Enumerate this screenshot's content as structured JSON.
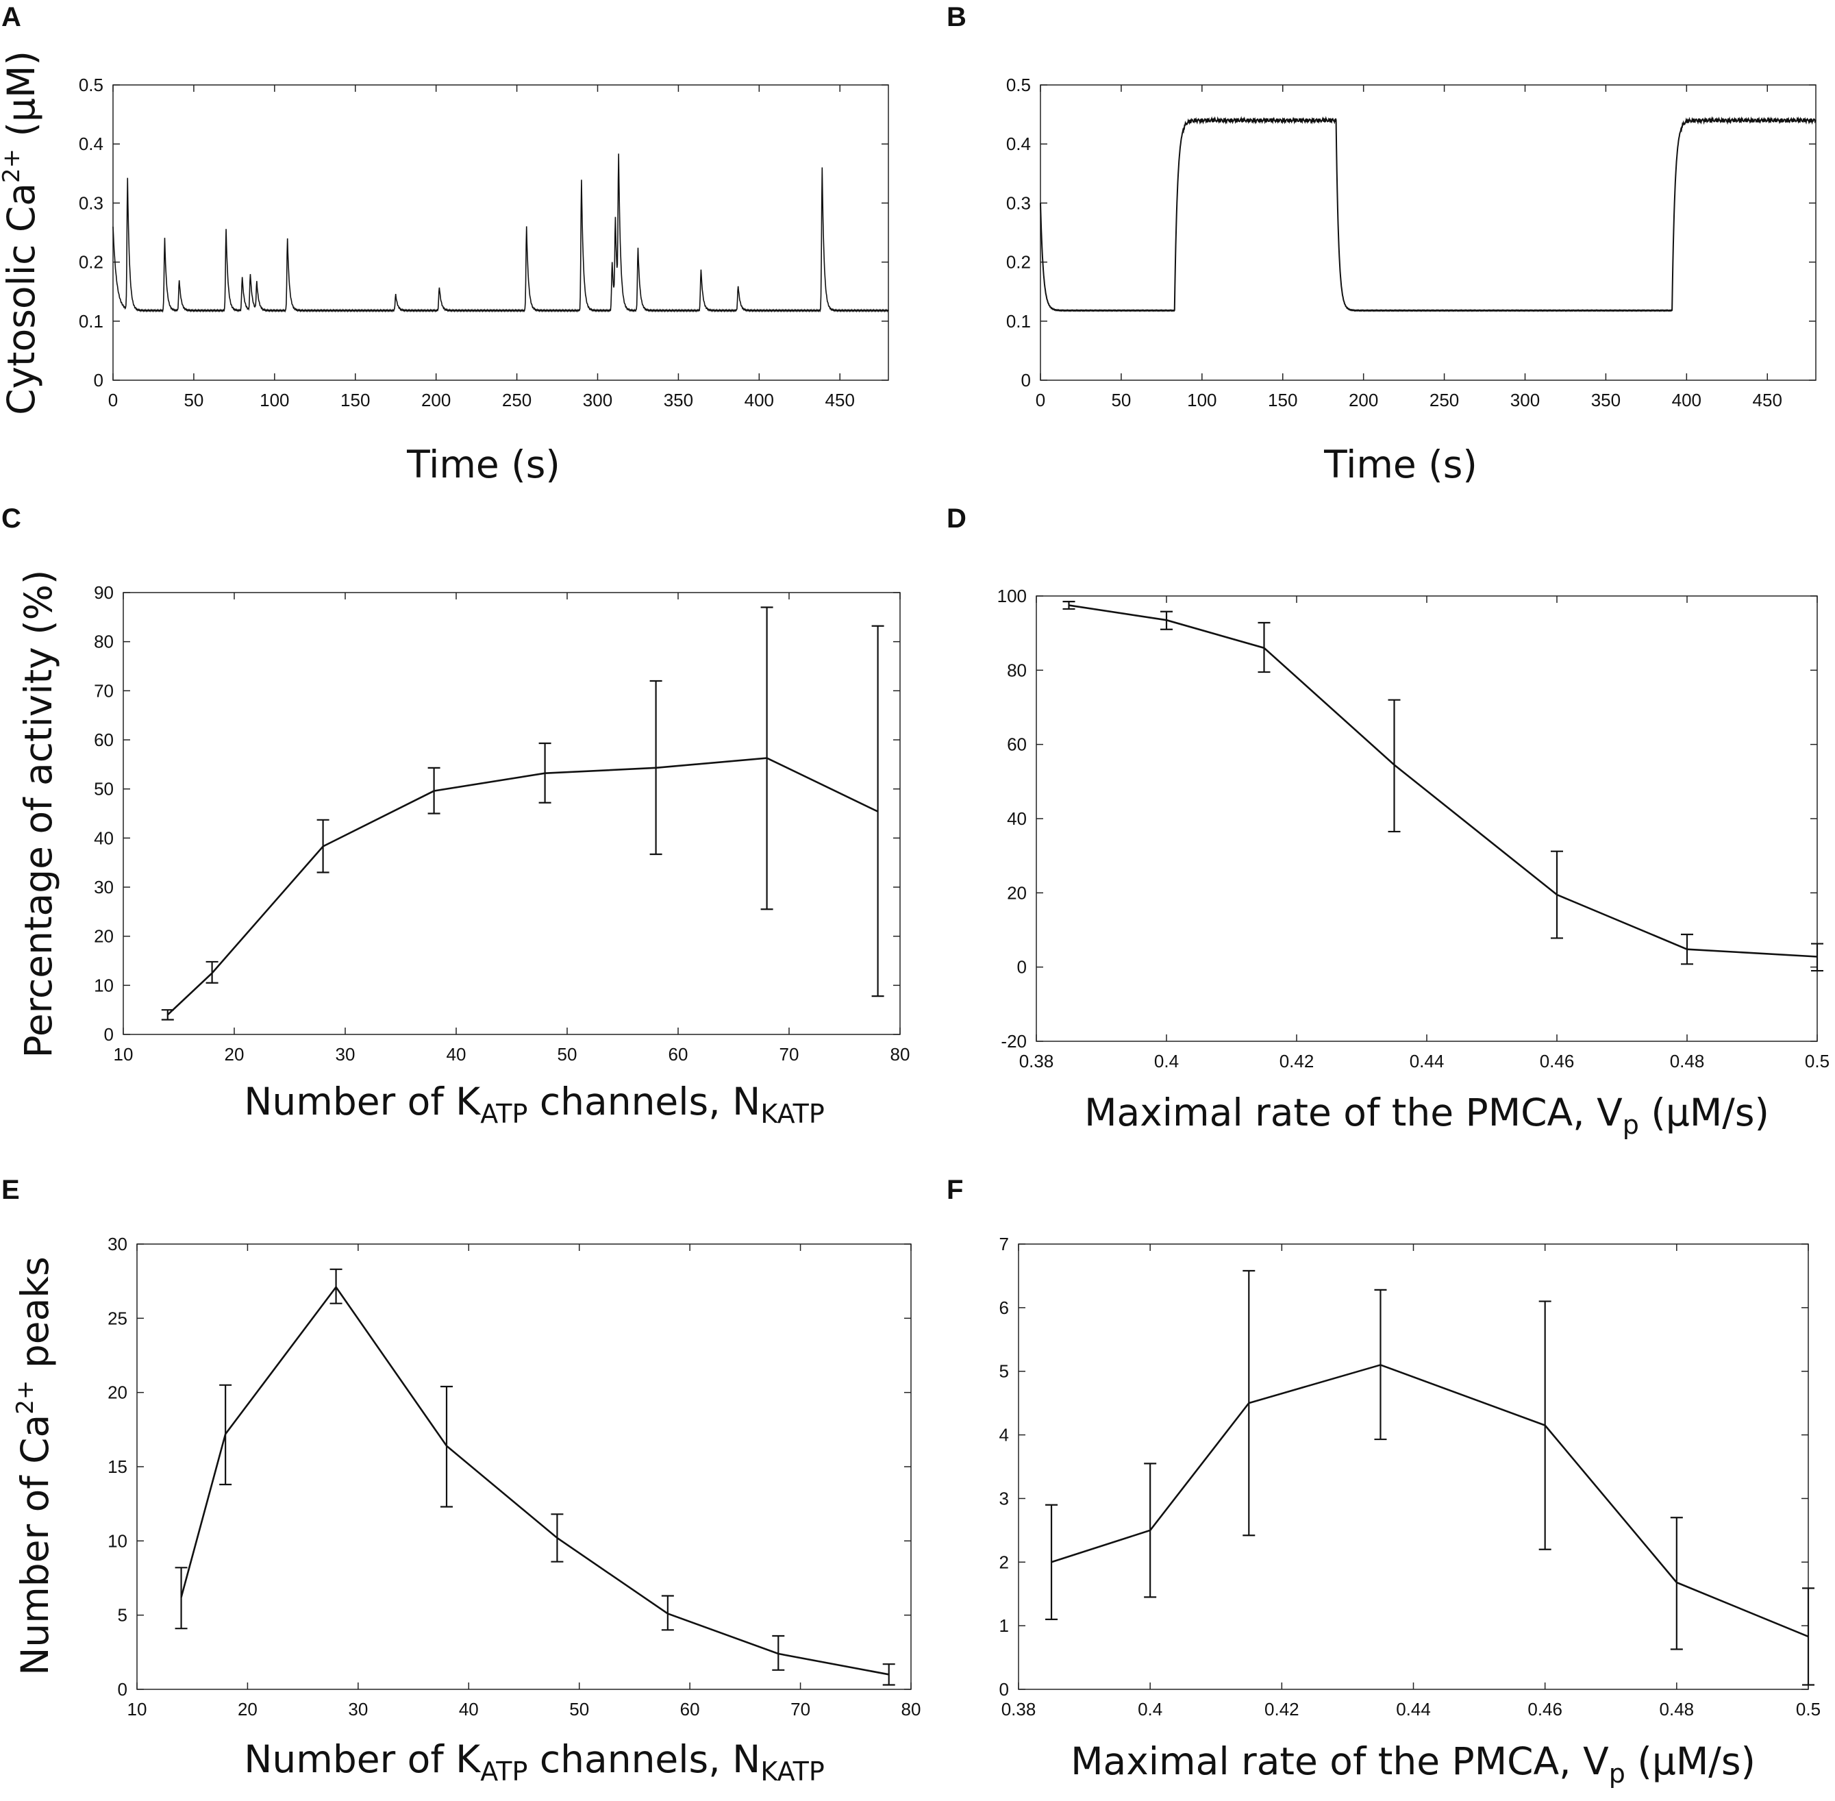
{
  "figure": {
    "panel_letters": [
      "A",
      "B",
      "C",
      "D",
      "E",
      "F"
    ]
  },
  "chart_data": [
    {
      "panel": "A",
      "type": "line",
      "title": "",
      "xlabel": "Time (s)",
      "ylabel": {
        "pre": "Cytosolic Ca",
        "sup": "2+",
        "post": " (μM)"
      },
      "xlim": [
        0,
        480
      ],
      "ylim": [
        0,
        0.5
      ],
      "xticks": [
        0,
        50,
        100,
        150,
        200,
        250,
        300,
        350,
        400,
        450
      ],
      "yticks": [
        0,
        0.1,
        0.2,
        0.3,
        0.4,
        0.5
      ],
      "baseline": 0.118,
      "start_value": 0.26,
      "peaks": [
        {
          "t": 9,
          "v": 0.34
        },
        {
          "t": 32,
          "v": 0.24
        },
        {
          "t": 41,
          "v": 0.17
        },
        {
          "t": 70,
          "v": 0.255
        },
        {
          "t": 80,
          "v": 0.175
        },
        {
          "t": 85,
          "v": 0.18
        },
        {
          "t": 89,
          "v": 0.165
        },
        {
          "t": 108,
          "v": 0.24
        },
        {
          "t": 175,
          "v": 0.145
        },
        {
          "t": 202,
          "v": 0.158
        },
        {
          "t": 256,
          "v": 0.26
        },
        {
          "t": 290,
          "v": 0.34
        },
        {
          "t": 309,
          "v": 0.2
        },
        {
          "t": 311,
          "v": 0.26
        },
        {
          "t": 313,
          "v": 0.355
        },
        {
          "t": 325,
          "v": 0.225
        },
        {
          "t": 364,
          "v": 0.188
        },
        {
          "t": 387,
          "v": 0.16
        },
        {
          "t": 439,
          "v": 0.36
        }
      ]
    },
    {
      "panel": "B",
      "type": "line",
      "title": "",
      "xlabel": "Time (s)",
      "xlim": [
        0,
        480
      ],
      "ylim": [
        0,
        0.5
      ],
      "xticks": [
        0,
        50,
        100,
        150,
        200,
        250,
        300,
        350,
        400,
        450
      ],
      "yticks": [
        0,
        0.1,
        0.2,
        0.3,
        0.4,
        0.5
      ],
      "low": 0.118,
      "high": 0.44,
      "start_value": 0.3,
      "plateaus": [
        {
          "rise": 83,
          "fall": 183
        },
        {
          "rise": 391,
          "fall": 480
        }
      ]
    },
    {
      "panel": "C",
      "type": "line",
      "title": "",
      "xlabel": {
        "pre": "Number of K",
        "sub": "ATP",
        "post": " channels, N",
        "sub2": "KATP"
      },
      "ylabel": "Percentage of activity (%)",
      "xlim": [
        10,
        80
      ],
      "ylim": [
        0,
        90
      ],
      "xticks": [
        10,
        20,
        30,
        40,
        50,
        60,
        70,
        80
      ],
      "yticks": [
        0,
        10,
        20,
        30,
        40,
        50,
        60,
        70,
        80,
        90
      ],
      "x": [
        14,
        18,
        28,
        38,
        48,
        58,
        68,
        78
      ],
      "y": [
        4,
        12.5,
        38.3,
        49.6,
        53.2,
        54.3,
        56.3,
        45.4
      ],
      "err_low": [
        3,
        10.5,
        33,
        45,
        47.2,
        36.7,
        25.5,
        7.8
      ],
      "err_high": [
        5,
        14.8,
        43.7,
        54.3,
        59.3,
        72,
        87,
        83.2
      ]
    },
    {
      "panel": "D",
      "type": "line",
      "title": "",
      "xlabel": {
        "pre": "Maximal rate of the PMCA, V",
        "sub": "p",
        "post": " (μM/s)"
      },
      "ylabel": "",
      "xlim": [
        0.38,
        0.5
      ],
      "ylim": [
        -20,
        100
      ],
      "xticks": [
        0.38,
        0.4,
        0.42,
        0.44,
        0.46,
        0.48,
        0.5
      ],
      "xtick_labels": [
        "0.38",
        "0.4",
        "0.42",
        "0.44",
        "0.46",
        "0.48",
        "0.5"
      ],
      "yticks": [
        -20,
        0,
        20,
        40,
        60,
        80,
        100
      ],
      "x": [
        0.385,
        0.4,
        0.415,
        0.435,
        0.46,
        0.48,
        0.5
      ],
      "y": [
        97.5,
        93.5,
        86,
        54.5,
        19.5,
        4.8,
        2.8
      ],
      "err_low": [
        96.5,
        91,
        79.5,
        36.5,
        7.8,
        0.8,
        -1
      ],
      "err_high": [
        98.5,
        95.8,
        92.8,
        72,
        31.2,
        8.8,
        6.3
      ]
    },
    {
      "panel": "E",
      "type": "line",
      "title": "",
      "xlabel": {
        "pre": "Number of K",
        "sub": "ATP",
        "post": " channels, N",
        "sub2": "KATP"
      },
      "ylabel": {
        "pre": "Number of Ca",
        "sup": "2+",
        "post": " peaks"
      },
      "xlim": [
        10,
        80
      ],
      "ylim": [
        0,
        30
      ],
      "xticks": [
        10,
        20,
        30,
        40,
        50,
        60,
        70,
        80
      ],
      "yticks": [
        0,
        5,
        10,
        15,
        20,
        25,
        30
      ],
      "x": [
        14,
        18,
        28,
        38,
        48,
        58,
        68,
        78
      ],
      "y": [
        6.2,
        17.2,
        27.1,
        16.4,
        10.2,
        5.1,
        2.4,
        1
      ],
      "err_low": [
        4.1,
        13.8,
        26,
        12.3,
        8.6,
        4,
        1.3,
        0.3
      ],
      "err_high": [
        8.2,
        20.5,
        28.3,
        20.4,
        11.8,
        6.3,
        3.6,
        1.7
      ]
    },
    {
      "panel": "F",
      "type": "line",
      "title": "",
      "xlabel": {
        "pre": "Maximal rate of the PMCA, V",
        "sub": "p",
        "post": " (μM/s)"
      },
      "ylabel": "",
      "xlim": [
        0.38,
        0.5
      ],
      "ylim": [
        0,
        7
      ],
      "xticks": [
        0.38,
        0.4,
        0.42,
        0.44,
        0.46,
        0.48,
        0.5
      ],
      "xtick_labels": [
        "0.38",
        "0.4",
        "0.42",
        "0.44",
        "0.46",
        "0.48",
        "0.5"
      ],
      "yticks": [
        0,
        1,
        2,
        3,
        4,
        5,
        6,
        7
      ],
      "x": [
        0.385,
        0.4,
        0.415,
        0.435,
        0.46,
        0.48,
        0.5
      ],
      "y": [
        2,
        2.5,
        4.5,
        5.1,
        4.15,
        1.68,
        0.83
      ],
      "err_low": [
        1.1,
        1.45,
        2.42,
        3.93,
        2.2,
        0.63,
        0.07
      ],
      "err_high": [
        2.9,
        3.55,
        6.58,
        6.28,
        6.1,
        2.7,
        1.59
      ]
    }
  ]
}
